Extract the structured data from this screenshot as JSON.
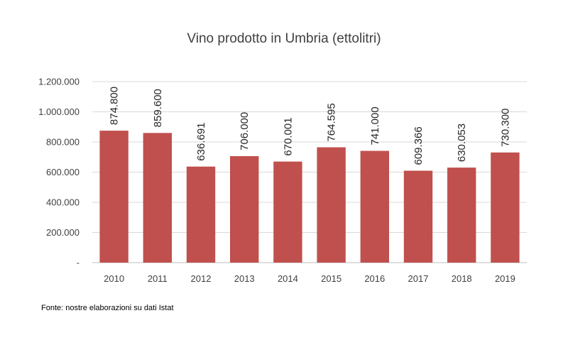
{
  "chart_data": {
    "type": "bar",
    "title": "Vino prodotto in Umbria (ettolitri)",
    "categories": [
      "2010",
      "2011",
      "2012",
      "2013",
      "2014",
      "2015",
      "2016",
      "2017",
      "2018",
      "2019"
    ],
    "values": [
      874800,
      859600,
      636691,
      706000,
      670001,
      764595,
      741000,
      609366,
      630053,
      730300
    ],
    "data_labels": [
      "874.800",
      "859.600",
      "636.691",
      "706.000",
      "670.001",
      "764.595",
      "741.000",
      "609.366",
      "630.053",
      "730.300"
    ],
    "yticks": [
      0,
      200000,
      400000,
      600000,
      800000,
      1000000,
      1200000
    ],
    "ytick_labels": [
      "-",
      "200.000",
      "400.000",
      "600.000",
      "800.000",
      "1.000.000",
      "1.200.000"
    ],
    "ylim": [
      0,
      1200000
    ],
    "xlabel": "",
    "ylabel": "",
    "grid": true,
    "legend": "none",
    "bar_color": "#C0504D"
  },
  "footer": {
    "source": "Fonte: nostre elaborazioni su dati Istat"
  }
}
